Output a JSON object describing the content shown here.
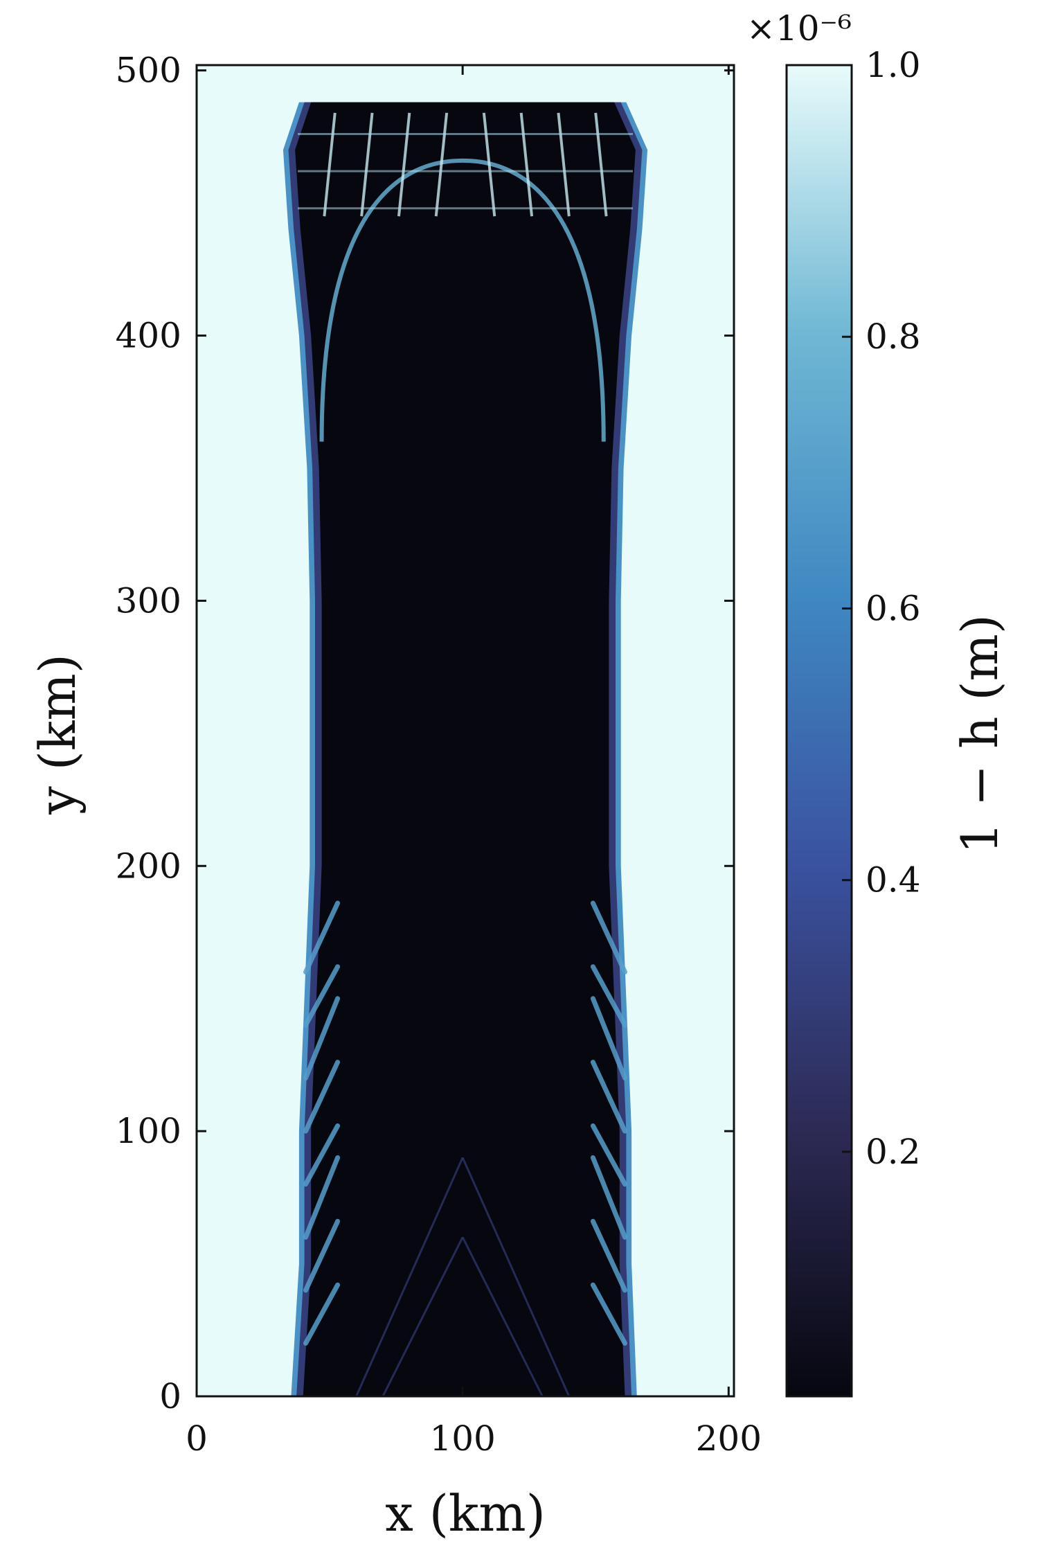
{
  "chart_data": {
    "type": "heatmap",
    "title": "",
    "xlabel": "x (km)",
    "ylabel": "y (km)",
    "xlim": [
      0,
      202
    ],
    "ylim": [
      0,
      502
    ],
    "x_ticks": [
      0,
      100,
      200
    ],
    "x_tick_labels": [
      "0",
      "100",
      "200"
    ],
    "y_ticks": [
      0,
      100,
      200,
      300,
      400,
      500
    ],
    "y_tick_labels": [
      "0",
      "100",
      "200",
      "300",
      "400",
      "500"
    ],
    "colorbar": {
      "label": "1 − h (m)",
      "multiplier": "×10⁻⁶",
      "ticks": [
        0.2,
        0.4,
        0.6,
        0.8,
        1.0
      ],
      "tick_labels": [
        "0.2",
        "0.4",
        "0.6",
        "0.8",
        "1.0"
      ],
      "range": [
        0.02,
        1.0
      ],
      "colors": [
        "#06070f",
        "#2d2a55",
        "#3a52a0",
        "#3f88c2",
        "#70b8d4",
        "#e8fbfb"
      ]
    },
    "regions": {
      "background_value": 1.0,
      "channel_center_x_km": 100,
      "channel_core_value": 0.02,
      "channel_edges_km": [
        {
          "y": 0,
          "x_left": 37,
          "x_right": 164
        },
        {
          "y": 50,
          "x_left": 40,
          "x_right": 162
        },
        {
          "y": 100,
          "x_left": 40,
          "x_right": 162
        },
        {
          "y": 150,
          "x_left": 42,
          "x_right": 160
        },
        {
          "y": 200,
          "x_left": 44,
          "x_right": 158
        },
        {
          "y": 250,
          "x_left": 44,
          "x_right": 158
        },
        {
          "y": 300,
          "x_left": 44,
          "x_right": 158
        },
        {
          "y": 350,
          "x_left": 43,
          "x_right": 159
        },
        {
          "y": 400,
          "x_left": 40,
          "x_right": 162
        },
        {
          "y": 440,
          "x_left": 36,
          "x_right": 166
        },
        {
          "y": 470,
          "x_left": 34,
          "x_right": 168
        },
        {
          "y": 488,
          "x_left": 40,
          "x_right": 160
        }
      ],
      "inner_dome_apex_y_km": 466,
      "inner_dome_base_y_km": 360,
      "inner_dome_half_width_km": 53
    }
  }
}
